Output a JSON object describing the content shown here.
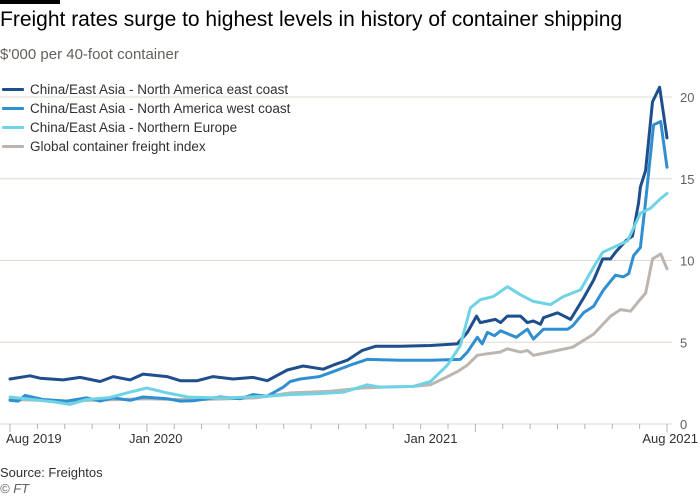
{
  "chart_data": {
    "type": "line",
    "title": "Freight rates surge to highest levels in history of container shipping",
    "subtitle": "$'000 per 40-foot container",
    "xlabel": "",
    "ylabel": "",
    "x_units": "months since Aug 2019",
    "xlim": [
      0,
      24
    ],
    "ylim": [
      0,
      20
    ],
    "yticks": [
      "0",
      "5",
      "10",
      "15",
      "20"
    ],
    "xtick_labels": [
      "Aug 2019",
      "Jan 2020",
      "Jan 2021",
      "Aug 2021"
    ],
    "grid": true,
    "legend_position": "top-left",
    "series": [
      {
        "name": "China/East Asia - North America east coast",
        "color": "#1f4e8c",
        "points": [
          [
            0,
            2.75
          ],
          [
            0.73,
            2.95
          ],
          [
            1.1,
            2.8
          ],
          [
            1.94,
            2.7
          ],
          [
            2.56,
            2.85
          ],
          [
            3.29,
            2.6
          ],
          [
            3.77,
            2.9
          ],
          [
            4.39,
            2.7
          ],
          [
            4.86,
            3.05
          ],
          [
            5.74,
            2.9
          ],
          [
            6.22,
            2.65
          ],
          [
            6.84,
            2.65
          ],
          [
            7.42,
            2.9
          ],
          [
            8.15,
            2.75
          ],
          [
            8.88,
            2.85
          ],
          [
            9.4,
            2.65
          ],
          [
            10.13,
            3.3
          ],
          [
            10.71,
            3.55
          ],
          [
            11.44,
            3.35
          ],
          [
            11.81,
            3.6
          ],
          [
            12.32,
            3.9
          ],
          [
            12.87,
            4.5
          ],
          [
            13.35,
            4.75
          ],
          [
            14.26,
            4.75
          ],
          [
            15.36,
            4.8
          ],
          [
            16.34,
            4.9
          ],
          [
            16.71,
            5.6
          ],
          [
            17.04,
            6.6
          ],
          [
            17.18,
            6.2
          ],
          [
            17.73,
            6.4
          ],
          [
            17.92,
            6.2
          ],
          [
            18.17,
            6.6
          ],
          [
            18.65,
            6.6
          ],
          [
            18.9,
            6.2
          ],
          [
            19.12,
            6.3
          ],
          [
            19.38,
            6.1
          ],
          [
            19.49,
            6.5
          ],
          [
            20.0,
            6.8
          ],
          [
            20.48,
            6.4
          ],
          [
            20.95,
            7.7
          ],
          [
            21.32,
            8.8
          ],
          [
            21.65,
            10.1
          ],
          [
            21.94,
            10.1
          ],
          [
            22.12,
            10.5
          ],
          [
            22.49,
            11.2
          ],
          [
            22.74,
            11.5
          ],
          [
            22.96,
            13.5
          ],
          [
            23.03,
            14.5
          ],
          [
            23.22,
            15.5
          ],
          [
            23.47,
            19.7
          ],
          [
            23.73,
            20.6
          ],
          [
            24,
            17.5
          ]
        ]
      },
      {
        "name": "China/East Asia - North America west coast",
        "color": "#2f8fd0",
        "points": [
          [
            0,
            1.45
          ],
          [
            0.3,
            1.4
          ],
          [
            0.55,
            1.75
          ],
          [
            1.2,
            1.5
          ],
          [
            2.08,
            1.4
          ],
          [
            2.8,
            1.6
          ],
          [
            3.29,
            1.4
          ],
          [
            3.77,
            1.6
          ],
          [
            4.39,
            1.45
          ],
          [
            4.86,
            1.65
          ],
          [
            5.74,
            1.55
          ],
          [
            6.22,
            1.4
          ],
          [
            6.69,
            1.42
          ],
          [
            7.68,
            1.65
          ],
          [
            8.41,
            1.55
          ],
          [
            8.88,
            1.8
          ],
          [
            9.4,
            1.7
          ],
          [
            9.98,
            2.25
          ],
          [
            10.24,
            2.6
          ],
          [
            10.6,
            2.75
          ],
          [
            11.3,
            2.9
          ],
          [
            11.8,
            3.2
          ],
          [
            12.43,
            3.6
          ],
          [
            13.05,
            3.95
          ],
          [
            14.26,
            3.9
          ],
          [
            15.36,
            3.9
          ],
          [
            16.45,
            3.95
          ],
          [
            16.71,
            4.4
          ],
          [
            17.07,
            5.3
          ],
          [
            17.25,
            4.9
          ],
          [
            17.44,
            5.6
          ],
          [
            17.7,
            5.4
          ],
          [
            17.92,
            5.7
          ],
          [
            18.21,
            5.5
          ],
          [
            18.5,
            5.3
          ],
          [
            18.65,
            5.5
          ],
          [
            18.9,
            5.8
          ],
          [
            19.12,
            5.2
          ],
          [
            19.49,
            5.8
          ],
          [
            20.37,
            5.8
          ],
          [
            20.55,
            6.0
          ],
          [
            20.95,
            6.8
          ],
          [
            21.32,
            7.2
          ],
          [
            21.68,
            8.2
          ],
          [
            22.12,
            9.1
          ],
          [
            22.4,
            9.0
          ],
          [
            22.6,
            9.2
          ],
          [
            22.78,
            10.3
          ],
          [
            23.03,
            10.8
          ],
          [
            23.22,
            13.6
          ],
          [
            23.51,
            18.3
          ],
          [
            23.77,
            18.5
          ],
          [
            24,
            15.7
          ]
        ]
      },
      {
        "name": "China/East Asia - Northern Europe",
        "color": "#6fd3e6",
        "points": [
          [
            0,
            1.65
          ],
          [
            0.8,
            1.5
          ],
          [
            1.6,
            1.35
          ],
          [
            2.19,
            1.2
          ],
          [
            2.8,
            1.5
          ],
          [
            3.6,
            1.6
          ],
          [
            4.5,
            2.0
          ],
          [
            5.0,
            2.2
          ],
          [
            5.74,
            1.9
          ],
          [
            6.5,
            1.65
          ],
          [
            7.3,
            1.6
          ],
          [
            8.0,
            1.6
          ],
          [
            9.4,
            1.7
          ],
          [
            10.2,
            1.8
          ],
          [
            11.2,
            1.85
          ],
          [
            12.2,
            1.95
          ],
          [
            13.05,
            2.4
          ],
          [
            13.53,
            2.25
          ],
          [
            14.73,
            2.3
          ],
          [
            15.36,
            2.6
          ],
          [
            15.98,
            3.6
          ],
          [
            16.45,
            4.8
          ],
          [
            16.82,
            7.1
          ],
          [
            17.18,
            7.6
          ],
          [
            17.66,
            7.8
          ],
          [
            18.17,
            8.4
          ],
          [
            18.65,
            7.9
          ],
          [
            19.12,
            7.5
          ],
          [
            19.74,
            7.3
          ],
          [
            20.22,
            7.8
          ],
          [
            20.84,
            8.2
          ],
          [
            21.32,
            9.6
          ],
          [
            21.65,
            10.5
          ],
          [
            22.3,
            11.0
          ],
          [
            22.56,
            11.2
          ],
          [
            23.03,
            12.9
          ],
          [
            23.4,
            13.2
          ],
          [
            23.77,
            13.8
          ],
          [
            24,
            14.1
          ]
        ]
      },
      {
        "name": "Global container freight index",
        "color": "#bdb6b0",
        "points": [
          [
            0,
            1.5
          ],
          [
            1.0,
            1.45
          ],
          [
            2.0,
            1.4
          ],
          [
            3.0,
            1.45
          ],
          [
            4.0,
            1.5
          ],
          [
            5.0,
            1.55
          ],
          [
            6.0,
            1.5
          ],
          [
            7.0,
            1.5
          ],
          [
            8.0,
            1.55
          ],
          [
            9.0,
            1.6
          ],
          [
            10.24,
            1.9
          ],
          [
            11.7,
            2.0
          ],
          [
            12.87,
            2.2
          ],
          [
            13.53,
            2.25
          ],
          [
            14.73,
            2.3
          ],
          [
            15.36,
            2.4
          ],
          [
            15.98,
            2.9
          ],
          [
            16.34,
            3.2
          ],
          [
            16.71,
            3.6
          ],
          [
            17.07,
            4.2
          ],
          [
            17.44,
            4.3
          ],
          [
            17.9,
            4.4
          ],
          [
            18.17,
            4.6
          ],
          [
            18.65,
            4.4
          ],
          [
            18.9,
            4.5
          ],
          [
            19.12,
            4.2
          ],
          [
            20.0,
            4.5
          ],
          [
            20.55,
            4.7
          ],
          [
            20.84,
            5.0
          ],
          [
            21.32,
            5.5
          ],
          [
            21.94,
            6.6
          ],
          [
            22.3,
            7.0
          ],
          [
            22.67,
            6.9
          ],
          [
            22.96,
            7.5
          ],
          [
            23.22,
            8.0
          ],
          [
            23.47,
            10.1
          ],
          [
            23.77,
            10.4
          ],
          [
            24,
            9.5
          ]
        ]
      }
    ]
  },
  "footer": {
    "source": "Source: Freightos",
    "credit": "© FT"
  }
}
